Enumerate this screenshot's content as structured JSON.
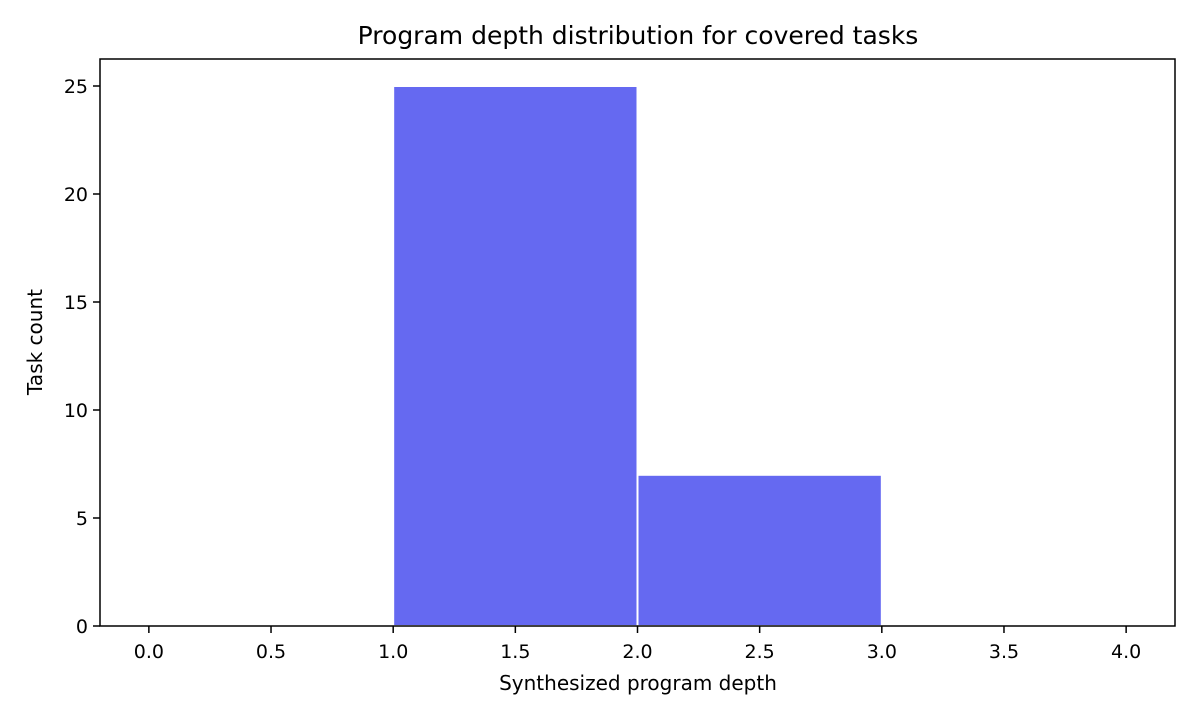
{
  "chart_data": {
    "type": "bar",
    "title": "Program depth distribution for covered tasks",
    "xlabel": "Synthesized program depth",
    "ylabel": "Task count",
    "bins": [
      {
        "x0": 1.0,
        "x1": 2.0,
        "value": 25
      },
      {
        "x0": 2.0,
        "x1": 3.0,
        "value": 7
      }
    ],
    "xlim": [
      -0.2,
      4.2
    ],
    "ylim": [
      0,
      26.25
    ],
    "xticks": [
      "0.0",
      "0.5",
      "1.0",
      "1.5",
      "2.0",
      "2.5",
      "3.0",
      "3.5",
      "4.0"
    ],
    "yticks": [
      "0",
      "5",
      "10",
      "15",
      "20",
      "25"
    ],
    "bar_color": "#6569f1",
    "bar_edge_color": "#ffffff",
    "grid": false,
    "legend": "none"
  }
}
